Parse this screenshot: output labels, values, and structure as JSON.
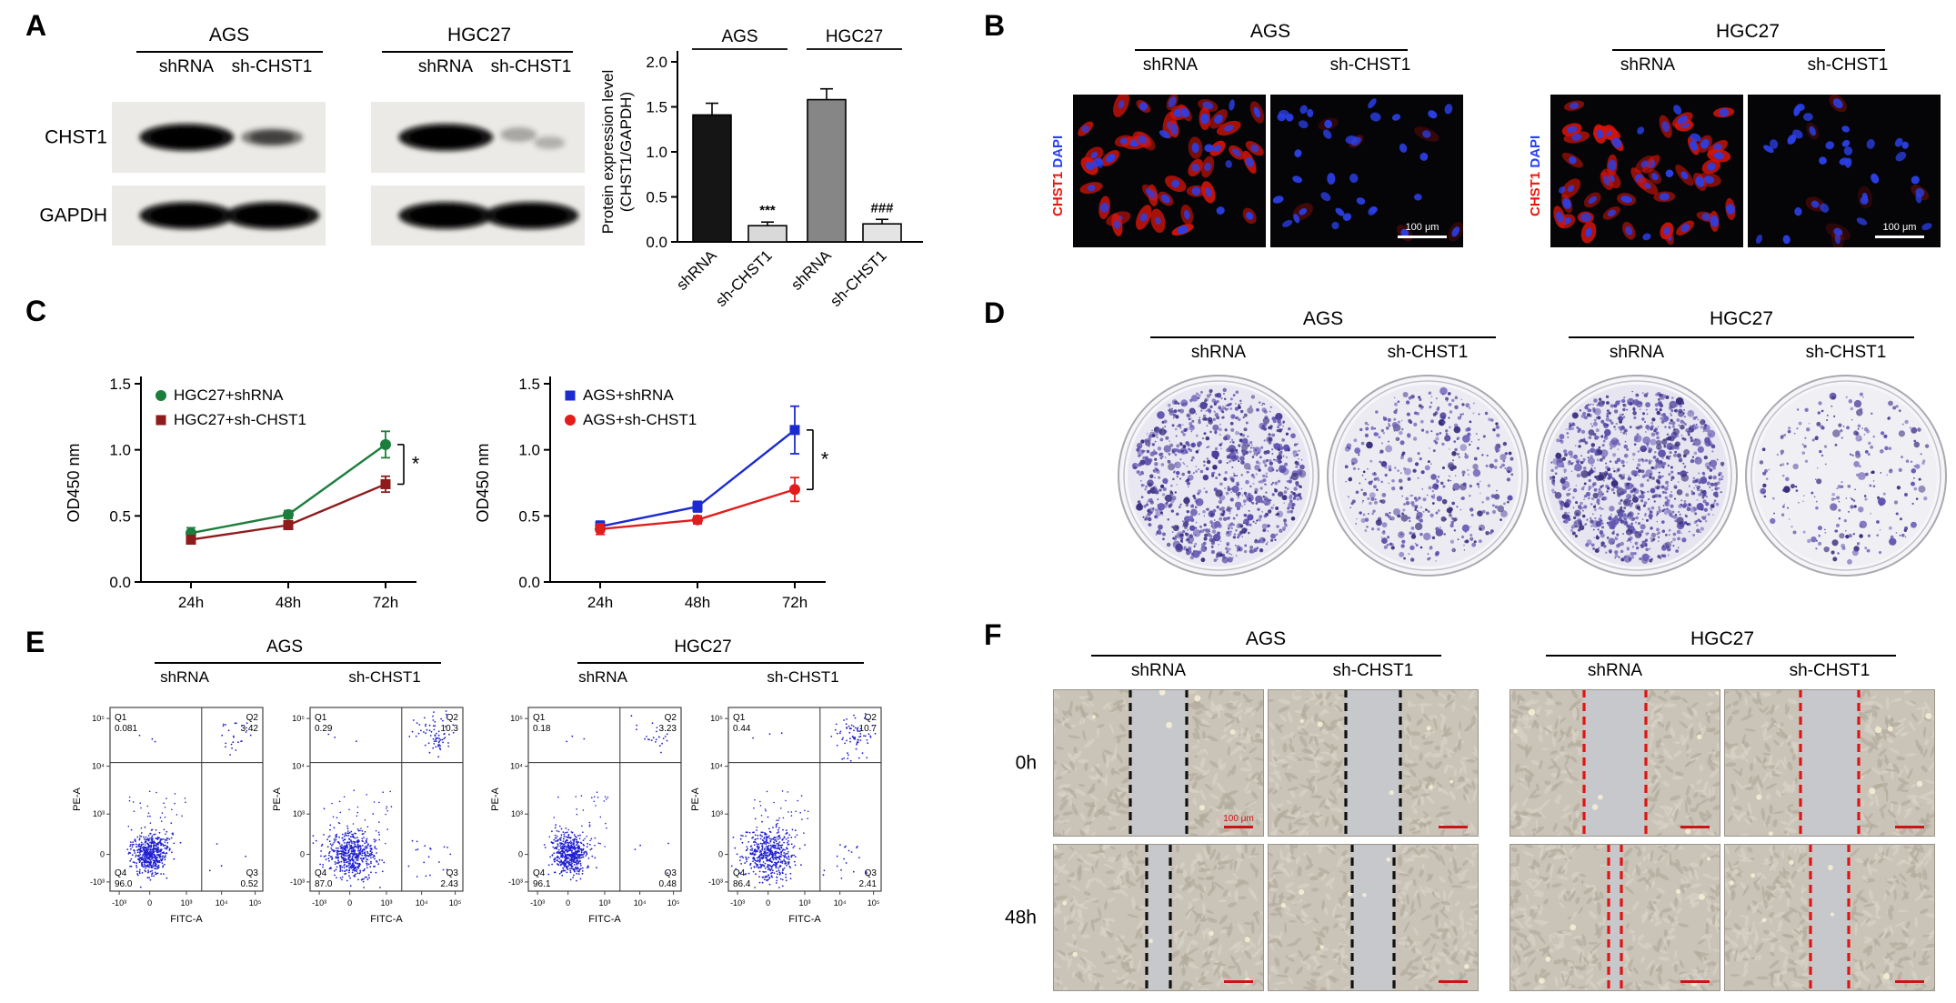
{
  "panels": {
    "A": {
      "label": "A",
      "groups": [
        "AGS",
        "HGC27"
      ],
      "lane_labels": [
        "shRNA",
        "sh-CHST1",
        "shRNA",
        "sh-CHST1"
      ],
      "blot_rows": [
        "CHST1",
        "GAPDH"
      ],
      "blots": [
        {
          "row": "CHST1",
          "group": "AGS",
          "lanes": [
            "strong",
            "weak"
          ]
        },
        {
          "row": "CHST1",
          "group": "HGC27",
          "lanes": [
            "strong",
            "faint"
          ]
        },
        {
          "row": "GAPDH",
          "group": "AGS",
          "lanes": [
            "strong",
            "strong"
          ]
        },
        {
          "row": "GAPDH",
          "group": "HGC27",
          "lanes": [
            "strong",
            "strong"
          ]
        }
      ],
      "chart_data": {
        "type": "bar",
        "ylabel_line1": "Protein expression level",
        "ylabel_line2": "(CHST1/GAPDH)",
        "ylim": [
          0,
          2.0
        ],
        "yticks": [
          "0.0",
          "0.5",
          "1.0",
          "1.5",
          "2.0"
        ],
        "group_labels": [
          "AGS",
          "HGC27"
        ],
        "categories": [
          "shRNA",
          "sh-CHST1",
          "shRNA",
          "sh-CHST1"
        ],
        "values": [
          1.41,
          0.18,
          1.58,
          0.2
        ],
        "errors": [
          0.13,
          0.04,
          0.12,
          0.05
        ],
        "bar_colors": [
          "#151515",
          "#d9d9d9",
          "#868686",
          "#e4e4e4"
        ],
        "annotations": [
          "",
          "***",
          "",
          "###"
        ]
      }
    },
    "B": {
      "label": "B",
      "groups": [
        "AGS",
        "HGC27"
      ],
      "conditions": [
        "shRNA",
        "sh-CHST1",
        "shRNA",
        "sh-CHST1"
      ],
      "stain_labels": [
        {
          "text": "CHST1",
          "color": "#e8170c"
        },
        {
          "text": "DAPI",
          "color": "#2741f5"
        }
      ],
      "scale_label": "100 μm",
      "images": [
        {
          "red_cells": 42,
          "blue_cells": 7,
          "red_strength": 1.0,
          "scale": false
        },
        {
          "red_cells": 6,
          "blue_cells": 30,
          "red_strength": 0.35,
          "scale": true
        },
        {
          "red_cells": 46,
          "blue_cells": 6,
          "red_strength": 1.0,
          "scale": false
        },
        {
          "red_cells": 7,
          "blue_cells": 28,
          "red_strength": 0.35,
          "scale": true
        }
      ]
    },
    "C": {
      "label": "C",
      "chart_data": [
        {
          "type": "line",
          "ylabel": "OD450 nm",
          "ylim": [
            0.0,
            1.5
          ],
          "yticks": [
            "0.0",
            "0.5",
            "1.0",
            "1.5"
          ],
          "x": [
            "24h",
            "48h",
            "72h"
          ],
          "series": [
            {
              "name": "HGC27+shRNA",
              "color": "#1b7e3c",
              "marker": "circle",
              "values": [
                0.37,
                0.51,
                1.04
              ],
              "errors": [
                0.04,
                0.03,
                0.1
              ]
            },
            {
              "name": "HGC27+sh-CHST1",
              "color": "#8e1c1c",
              "marker": "square",
              "values": [
                0.32,
                0.43,
                0.74
              ],
              "errors": [
                0.03,
                0.03,
                0.06
              ]
            }
          ],
          "significance": "*"
        },
        {
          "type": "line",
          "ylabel": "OD450 nm",
          "ylim": [
            0.0,
            1.5
          ],
          "yticks": [
            "0.0",
            "0.5",
            "1.0",
            "1.5"
          ],
          "x": [
            "24h",
            "48h",
            "72h"
          ],
          "series": [
            {
              "name": "AGS+shRNA",
              "color": "#1b2bd0",
              "marker": "square",
              "values": [
                0.42,
                0.57,
                1.15
              ],
              "errors": [
                0.04,
                0.04,
                0.18
              ]
            },
            {
              "name": "AGS+sh-CHST1",
              "color": "#e31c1c",
              "marker": "circle",
              "values": [
                0.4,
                0.47,
                0.7
              ],
              "errors": [
                0.04,
                0.03,
                0.09
              ]
            }
          ],
          "significance": "*"
        }
      ]
    },
    "D": {
      "label": "D",
      "groups": [
        "AGS",
        "HGC27"
      ],
      "conditions": [
        "shRNA",
        "sh-CHST1",
        "shRNA",
        "sh-CHST1"
      ],
      "colony_counts": [
        950,
        480,
        1050,
        260
      ],
      "dish_tints": [
        "#e9e7f1",
        "#ecebf2",
        "#e7e5f0",
        "#f0eff4"
      ]
    },
    "E": {
      "label": "E",
      "groups": [
        "AGS",
        "HGC27"
      ],
      "conditions": [
        "shRNA",
        "sh-CHST1",
        "shRNA",
        "sh-CHST1"
      ],
      "xlabel": "FITC-A",
      "ylabel": "PE-A",
      "xticks": [
        "-10³",
        "0",
        "10³",
        "10⁴",
        "10⁵"
      ],
      "yticks": [
        "10⁵",
        "10⁴",
        "10³",
        "0",
        "-10³"
      ],
      "plots": [
        {
          "q1_label": "Q1",
          "q1": "0.081",
          "q2_label": "Q2",
          "q2": "3.42",
          "q3_label": "Q3",
          "q3": "0.52",
          "q4_label": "Q4",
          "q4": "96.0"
        },
        {
          "q1_label": "Q1",
          "q1": "0.29",
          "q2_label": "Q2",
          "q2": "10.3",
          "q3_label": "Q3",
          "q3": "2.43",
          "q4_label": "Q4",
          "q4": "87.0"
        },
        {
          "q1_label": "Q1",
          "q1": "0.18",
          "q2_label": "Q2",
          "q2": "3.23",
          "q3_label": "Q3",
          "q3": "0.48",
          "q4_label": "Q4",
          "q4": "96.1"
        },
        {
          "q1_label": "Q1",
          "q1": "0.44",
          "q2_label": "Q2",
          "q2": "10.7",
          "q3_label": "Q3",
          "q3": "2.41",
          "q4_label": "Q4",
          "q4": "86.4"
        }
      ]
    },
    "F": {
      "label": "F",
      "groups": [
        "AGS",
        "HGC27"
      ],
      "conditions": [
        "shRNA",
        "sh-CHST1",
        "shRNA",
        "sh-CHST1"
      ],
      "row_labels": [
        "0h",
        "48h"
      ],
      "scale_label": "100 μm",
      "wounds": [
        {
          "gap": 62,
          "line_color": "#111111",
          "scale_text": true
        },
        {
          "gap": 60,
          "line_color": "#111111",
          "scale_text": false
        },
        {
          "gap": 68,
          "line_color": "#e01414",
          "scale_text": false
        },
        {
          "gap": 64,
          "line_color": "#e01414",
          "scale_text": false
        },
        {
          "gap": 26,
          "line_color": "#111111",
          "scale_text": false
        },
        {
          "gap": 46,
          "line_color": "#111111",
          "scale_text": false
        },
        {
          "gap": 14,
          "line_color": "#e01414",
          "scale_text": false
        },
        {
          "gap": 42,
          "line_color": "#e01414",
          "scale_text": false
        }
      ]
    }
  }
}
